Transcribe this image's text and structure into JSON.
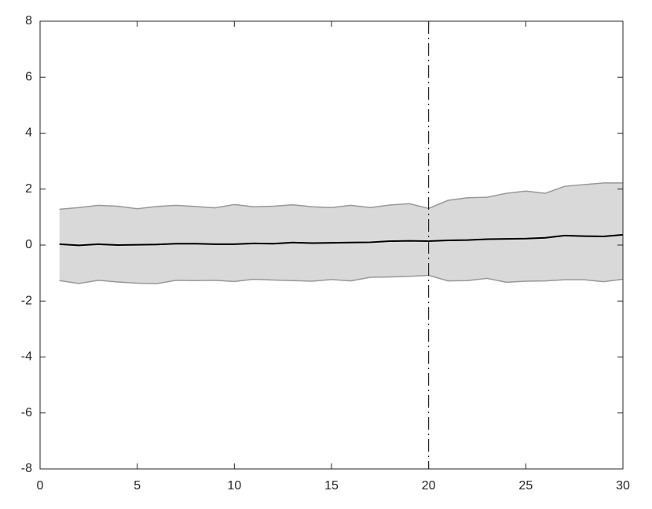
{
  "chart_data": {
    "type": "line",
    "x": [
      1,
      2,
      3,
      4,
      5,
      6,
      7,
      8,
      9,
      10,
      11,
      12,
      13,
      14,
      15,
      16,
      17,
      18,
      19,
      20,
      21,
      22,
      23,
      24,
      25,
      26,
      27,
      28,
      29,
      30
    ],
    "series": [
      {
        "color": "#000000",
        "values": [
          0.03,
          -0.01,
          0.03,
          0.0,
          0.01,
          0.02,
          0.05,
          0.05,
          0.03,
          0.03,
          0.06,
          0.05,
          0.09,
          0.07,
          0.08,
          0.09,
          0.1,
          0.14,
          0.15,
          0.14,
          0.17,
          0.18,
          0.21,
          0.22,
          0.23,
          0.26,
          0.34,
          0.32,
          0.31,
          0.37
        ]
      }
    ],
    "band": {
      "fill": "#d9d9d9",
      "edge_color": "#999999",
      "upper": [
        1.28,
        1.34,
        1.42,
        1.39,
        1.3,
        1.38,
        1.42,
        1.38,
        1.33,
        1.45,
        1.37,
        1.39,
        1.44,
        1.37,
        1.34,
        1.42,
        1.34,
        1.43,
        1.48,
        1.31,
        1.6,
        1.69,
        1.71,
        1.85,
        1.93,
        1.85,
        2.1,
        2.16,
        2.22,
        2.22
      ],
      "lower": [
        -1.27,
        -1.37,
        -1.26,
        -1.32,
        -1.36,
        -1.38,
        -1.26,
        -1.27,
        -1.26,
        -1.3,
        -1.22,
        -1.25,
        -1.27,
        -1.29,
        -1.23,
        -1.28,
        -1.15,
        -1.14,
        -1.12,
        -1.08,
        -1.28,
        -1.27,
        -1.19,
        -1.33,
        -1.29,
        -1.28,
        -1.24,
        -1.24,
        -1.31,
        -1.22
      ]
    },
    "vline": 20,
    "xlim": [
      0,
      30
    ],
    "xticks": [
      0,
      5,
      10,
      15,
      20,
      25,
      30
    ],
    "ylim": [
      -8,
      8
    ],
    "yticks": [
      -8,
      -6,
      -4,
      -2,
      0,
      2,
      4,
      6,
      8
    ],
    "grid": false
  }
}
